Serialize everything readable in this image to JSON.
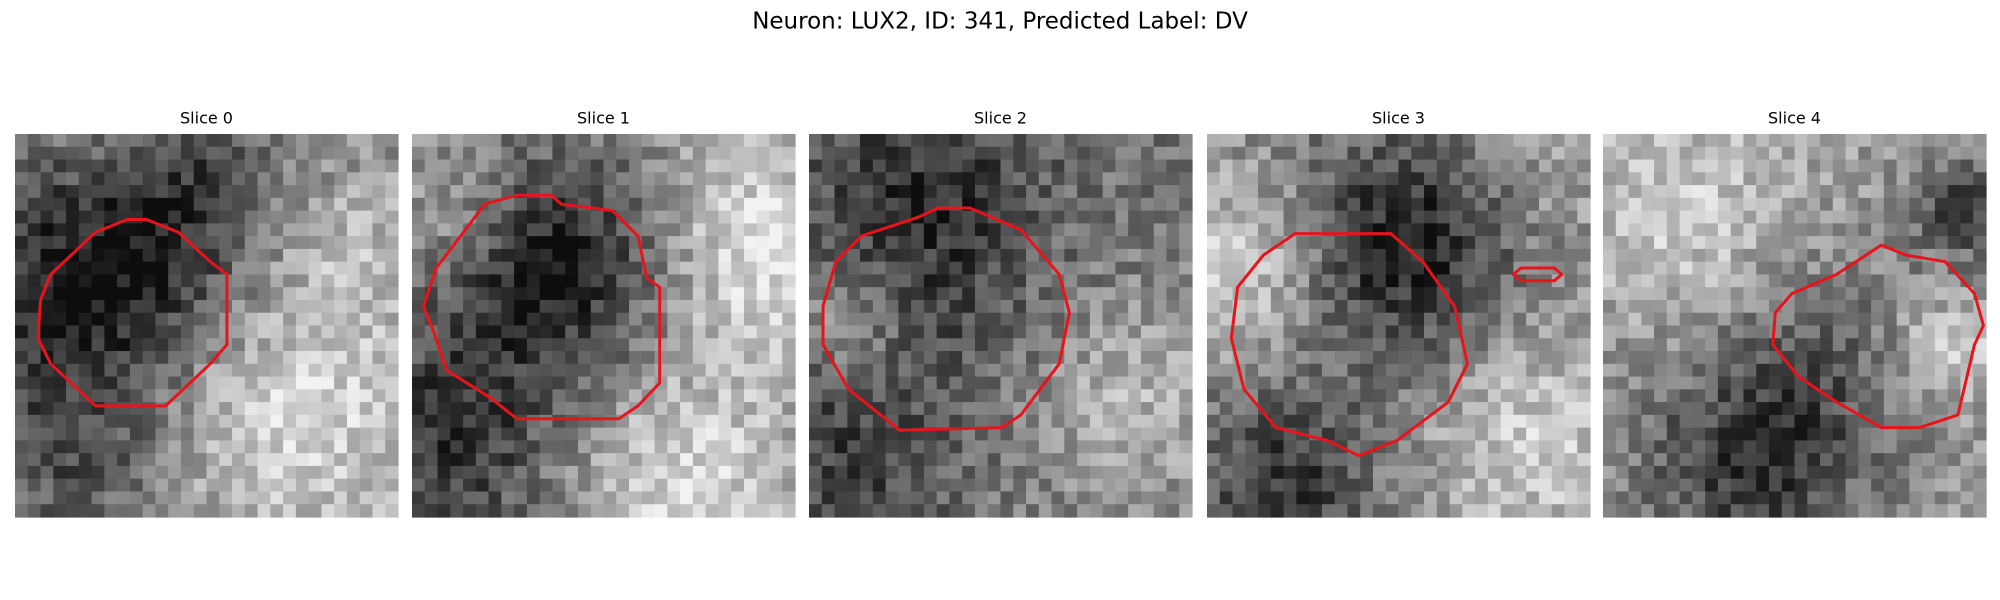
{
  "title": "Neuron: LUX2, ID: 341, Predicted Label: DV",
  "panels": [
    {
      "title": "Slice 0"
    },
    {
      "title": "Slice 1"
    },
    {
      "title": "Slice 2"
    },
    {
      "title": "Slice 3"
    },
    {
      "title": "Slice 4"
    }
  ]
}
